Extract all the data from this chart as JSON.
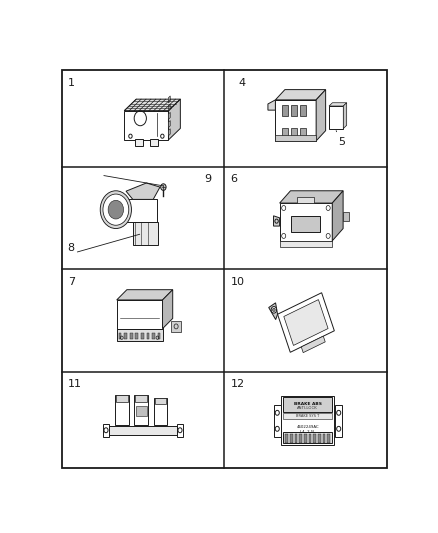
{
  "figsize": [
    4.38,
    5.33
  ],
  "dpi": 100,
  "bg_color": "#ffffff",
  "outer_border": [
    0.02,
    0.015,
    0.98,
    0.985
  ],
  "col_div": 0.5,
  "row_divs": [
    0.25,
    0.5,
    0.75
  ],
  "label_fontsize": 8,
  "line_color": "#1a1a1a",
  "line_width": 0.8
}
